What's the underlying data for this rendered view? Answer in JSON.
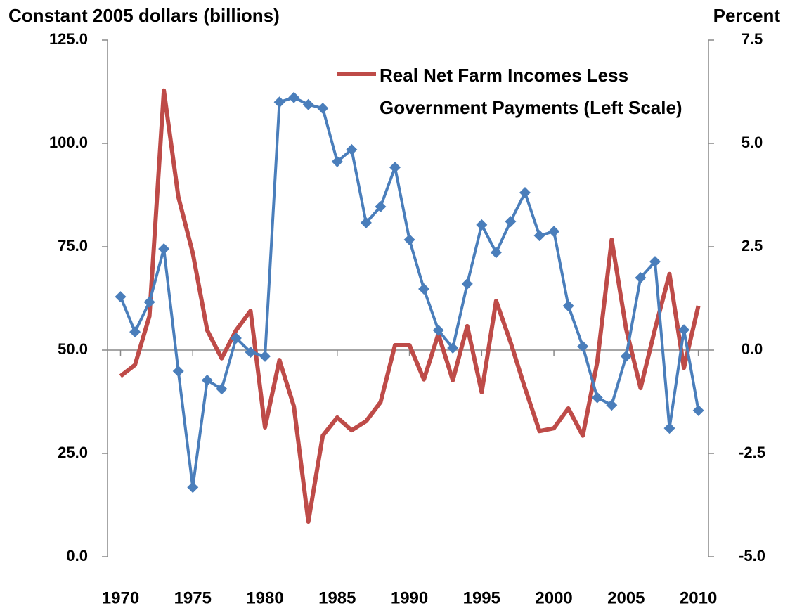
{
  "chart_data": {
    "type": "line",
    "y_label": "Constant 2005 dollars (billions)",
    "y2_label": "Percent",
    "x": [
      1970,
      1971,
      1972,
      1973,
      1974,
      1975,
      1976,
      1977,
      1978,
      1979,
      1980,
      1981,
      1982,
      1983,
      1984,
      1985,
      1986,
      1987,
      1988,
      1989,
      1990,
      1991,
      1992,
      1993,
      1994,
      1995,
      1996,
      1997,
      1998,
      1999,
      2000,
      2001,
      2002,
      2003,
      2004,
      2005,
      2006,
      2007,
      2008,
      2009,
      2010
    ],
    "series": [
      {
        "name": "Real Net Farm Incomes Less Government Payments (Left Scale)",
        "color": "#be4b48",
        "values": [
          43.7,
          46.4,
          58.2,
          112.8,
          87.1,
          73.5,
          54.8,
          48.0,
          54.8,
          59.5,
          31.3,
          47.6,
          36.4,
          8.5,
          29.3,
          33.7,
          30.6,
          32.8,
          37.4,
          51.2,
          51.2,
          42.9,
          53.9,
          42.7,
          55.8,
          39.8,
          61.9,
          51.9,
          40.8,
          30.4,
          31.1,
          35.9,
          29.3,
          47.1,
          76.7,
          55.1,
          40.8,
          55.1,
          68.4,
          45.7,
          60.7
        ]
      },
      {
        "color": "#4a7ebb",
        "axis": "y2",
        "marker": "diamond",
        "values": [
          1.29,
          0.44,
          1.16,
          2.45,
          -0.51,
          -3.32,
          -0.73,
          -0.94,
          0.29,
          -0.05,
          -0.15,
          6.0,
          6.11,
          5.94,
          5.85,
          4.56,
          4.85,
          3.08,
          3.47,
          4.42,
          2.67,
          1.48,
          0.48,
          0.05,
          1.6,
          3.03,
          2.36,
          3.11,
          3.81,
          2.77,
          2.87,
          1.07,
          0.09,
          -1.15,
          -1.33,
          -0.15,
          1.75,
          2.14,
          -1.89,
          0.49,
          -1.46
        ]
      }
    ],
    "xlim": [
      1969.1,
      2010.7
    ],
    "xticks": [
      1970,
      1975,
      1980,
      1985,
      1990,
      1995,
      2000,
      2005,
      2010
    ],
    "ylim": [
      0,
      125
    ],
    "yticks": [
      {
        "value": 0,
        "label": "0.0"
      },
      {
        "value": 25,
        "label": "25.0"
      },
      {
        "value": 50,
        "label": "50.0"
      },
      {
        "value": 75,
        "label": "75.0"
      },
      {
        "value": 100,
        "label": "100.0"
      },
      {
        "value": 125,
        "label": "125.0"
      }
    ],
    "y2lim": [
      -5,
      7.5
    ],
    "y2ticks": [
      {
        "value": -5,
        "label": "-5.0"
      },
      -2.5,
      {
        "value": 0,
        "label": "0.0"
      },
      2.5,
      {
        "value": 5,
        "label": "5.0"
      },
      7.5
    ],
    "legend": "upper right"
  }
}
